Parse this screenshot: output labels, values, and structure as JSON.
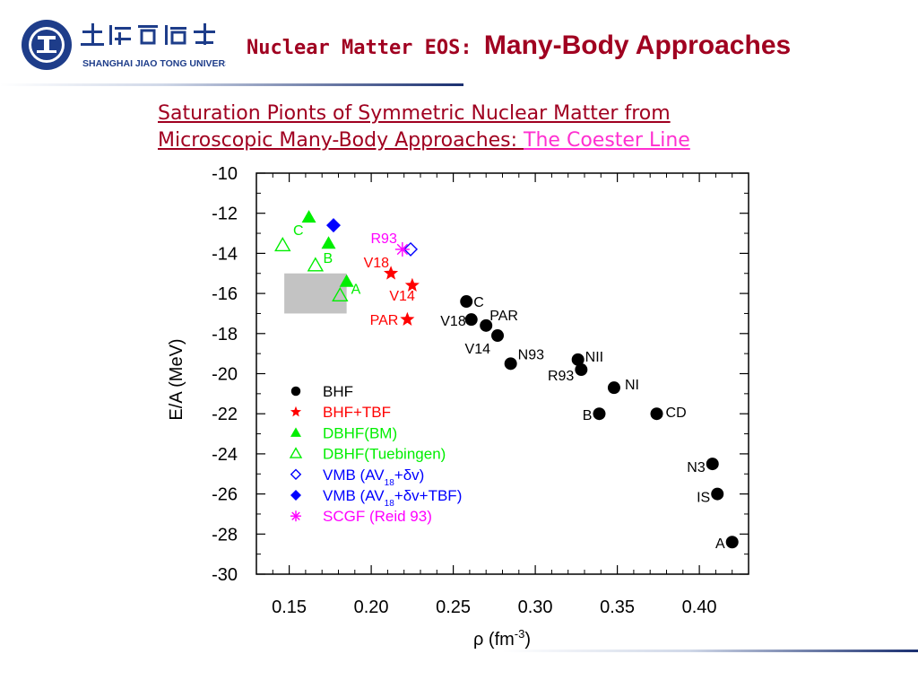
{
  "header": {
    "university_logo": "Shanghai Jiao Tong University",
    "title_part1": "Nuclear Matter EOS: ",
    "title_part2": "Many-Body Approaches"
  },
  "subtitle": {
    "line1": "Saturation Pionts of Symmetric Nuclear Matter from ",
    "line2a": "Microscopic Many-Body Approaches: ",
    "line2b": "The Coester Line"
  },
  "colors": {
    "accent": "#a00020",
    "pink": "#ff2fd0",
    "navy": "#1a2f70"
  },
  "chart_data": {
    "type": "scatter",
    "xlabel": "ρ (fm⁻³)",
    "ylabel": "E/A  (MeV)",
    "xlim": [
      0.13,
      0.43
    ],
    "ylim": [
      -30,
      -10
    ],
    "xticks": [
      "0.15",
      "0.20",
      "0.25",
      "0.30",
      "0.35",
      "0.40"
    ],
    "yticks": [
      "-10",
      "-12",
      "-14",
      "-16",
      "-18",
      "-20",
      "-22",
      "-24",
      "-26",
      "-28",
      "-30"
    ],
    "empirical_box": {
      "x": [
        0.147,
        0.185
      ],
      "y": [
        -17,
        -15
      ]
    },
    "series": [
      {
        "name": "BHF",
        "color": "#000000",
        "marker": "circle",
        "points": [
          {
            "x": 0.258,
            "y": -16.4,
            "label": "C"
          },
          {
            "x": 0.261,
            "y": -17.3,
            "label": "V18"
          },
          {
            "x": 0.27,
            "y": -17.6,
            "label": "PAR"
          },
          {
            "x": 0.277,
            "y": -18.1,
            "label": "V14"
          },
          {
            "x": 0.285,
            "y": -19.5,
            "label": "N93"
          },
          {
            "x": 0.326,
            "y": -19.3,
            "label": "NII"
          },
          {
            "x": 0.328,
            "y": -19.8,
            "label": "R93"
          },
          {
            "x": 0.348,
            "y": -20.7,
            "label": "NI"
          },
          {
            "x": 0.339,
            "y": -22.0,
            "label": "B"
          },
          {
            "x": 0.374,
            "y": -22.0,
            "label": "CD"
          },
          {
            "x": 0.408,
            "y": -24.5,
            "label": "N3"
          },
          {
            "x": 0.411,
            "y": -26.0,
            "label": "IS"
          },
          {
            "x": 0.42,
            "y": -28.4,
            "label": "A"
          }
        ]
      },
      {
        "name": "BHF+TBF",
        "color": "#ff0000",
        "marker": "star",
        "points": [
          {
            "x": 0.212,
            "y": -15.0,
            "label": "V18"
          },
          {
            "x": 0.225,
            "y": -15.6,
            "label": "V14"
          },
          {
            "x": 0.222,
            "y": -17.3,
            "label": "PAR"
          }
        ]
      },
      {
        "name": "DBHF(BM)",
        "color": "#00ee00",
        "marker": "triangle-filled",
        "points": [
          {
            "x": 0.162,
            "y": -12.2,
            "label": "C"
          },
          {
            "x": 0.174,
            "y": -13.5,
            "label": "B"
          },
          {
            "x": 0.185,
            "y": -15.4,
            "label": "A"
          }
        ]
      },
      {
        "name": "DBHF(Tuebingen)",
        "color": "#00ee00",
        "marker": "triangle-open",
        "points": [
          {
            "x": 0.146,
            "y": -13.6,
            "label": ""
          },
          {
            "x": 0.166,
            "y": -14.6,
            "label": ""
          },
          {
            "x": 0.181,
            "y": -16.1,
            "label": ""
          }
        ]
      },
      {
        "name": "VMB (AV18+δv)",
        "color": "#0000ff",
        "marker": "diamond-open",
        "points": [
          {
            "x": 0.224,
            "y": -13.8,
            "label": ""
          }
        ]
      },
      {
        "name": "VMB (AV18+δv+TBF)",
        "color": "#0000ff",
        "marker": "diamond-filled",
        "points": [
          {
            "x": 0.177,
            "y": -12.6,
            "label": ""
          }
        ]
      },
      {
        "name": "SCGF (Reid 93)",
        "color": "#ff00ff",
        "marker": "asterisk",
        "points": [
          {
            "x": 0.219,
            "y": -13.8,
            "label": "R93"
          }
        ]
      }
    ],
    "legend": {
      "placement": "bottom-left",
      "entries": [
        {
          "text": "BHF",
          "sub": "",
          "tail": "",
          "color": "#000000",
          "marker": "circle"
        },
        {
          "text": "BHF+TBF",
          "sub": "",
          "tail": "",
          "color": "#ff0000",
          "marker": "star"
        },
        {
          "text": "DBHF(BM)",
          "sub": "",
          "tail": "",
          "color": "#00ee00",
          "marker": "triangle-filled"
        },
        {
          "text": "DBHF(Tuebingen)",
          "sub": "",
          "tail": "",
          "color": "#00ee00",
          "marker": "triangle-open"
        },
        {
          "text": "VMB (AV",
          "sub": "18",
          "tail": "+δv)",
          "color": "#0000ff",
          "marker": "diamond-open"
        },
        {
          "text": "VMB (AV",
          "sub": "18",
          "tail": "+δv+TBF)",
          "color": "#0000ff",
          "marker": "diamond-filled"
        },
        {
          "text": "SCGF (Reid 93)",
          "sub": "",
          "tail": "",
          "color": "#ff00ff",
          "marker": "asterisk"
        }
      ]
    }
  }
}
